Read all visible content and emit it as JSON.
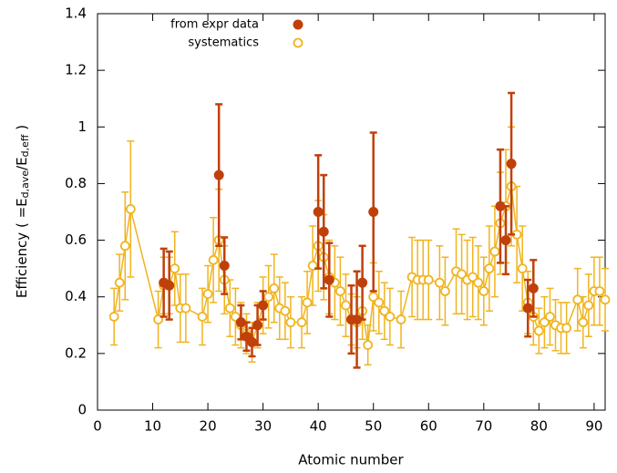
{
  "chart_data": {
    "type": "errorbar-scatter",
    "x_label": "Atomic number",
    "y_label": [
      "Efficiency  ( =E",
      "d,ave",
      "/E",
      "d,eff",
      " )"
    ],
    "xlim": [
      0,
      92
    ],
    "xticks": [
      0,
      10,
      20,
      30,
      40,
      50,
      60,
      70,
      80,
      90
    ],
    "ylim": [
      0,
      1.4
    ],
    "yticks": [
      0,
      0.2,
      0.4,
      0.6,
      0.8,
      1,
      1.2,
      1.4
    ],
    "series": [
      {
        "name": "from expr data",
        "color": "#c0400a",
        "marker": "filled",
        "connect": false,
        "x": [
          12,
          13,
          22,
          23,
          26,
          27,
          28,
          29,
          30,
          40,
          41,
          42,
          46,
          47,
          48,
          50,
          73,
          74,
          75,
          78,
          79
        ],
        "values": [
          0.45,
          0.44,
          0.83,
          0.51,
          0.31,
          0.26,
          0.24,
          0.3,
          0.37,
          0.7,
          0.63,
          0.46,
          0.32,
          0.32,
          0.45,
          0.7,
          0.72,
          0.6,
          0.87,
          0.36,
          0.43
        ],
        "errors": [
          0.12,
          0.12,
          0.25,
          0.1,
          0.06,
          0.05,
          0.05,
          0.07,
          0.05,
          0.2,
          0.2,
          0.13,
          0.12,
          0.17,
          0.13,
          0.28,
          0.2,
          0.12,
          0.25,
          0.1,
          0.1
        ]
      },
      {
        "name": "systematics",
        "color": "#f0b420",
        "marker": "open",
        "connect": true,
        "x": [
          3,
          4,
          5,
          6,
          11,
          12,
          13,
          14,
          15,
          16,
          19,
          20,
          21,
          22,
          23,
          24,
          25,
          26,
          27,
          28,
          29,
          30,
          31,
          32,
          33,
          34,
          35,
          37,
          38,
          39,
          40,
          41,
          42,
          43,
          44,
          45,
          46,
          47,
          48,
          49,
          50,
          51,
          52,
          53,
          55,
          57,
          58,
          59,
          60,
          62,
          63,
          65,
          66,
          67,
          68,
          69,
          70,
          71,
          72,
          73,
          74,
          75,
          76,
          77,
          78,
          79,
          80,
          81,
          82,
          83,
          84,
          85,
          87,
          88,
          89,
          90,
          91,
          92
        ],
        "values": [
          0.33,
          0.45,
          0.58,
          0.71,
          0.32,
          0.44,
          0.44,
          0.5,
          0.36,
          0.36,
          0.33,
          0.41,
          0.53,
          0.6,
          0.46,
          0.36,
          0.33,
          0.3,
          0.27,
          0.24,
          0.3,
          0.37,
          0.4,
          0.43,
          0.36,
          0.35,
          0.31,
          0.31,
          0.38,
          0.51,
          0.58,
          0.54,
          0.47,
          0.45,
          0.42,
          0.37,
          0.32,
          0.31,
          0.35,
          0.23,
          0.4,
          0.38,
          0.35,
          0.33,
          0.32,
          0.47,
          0.46,
          0.46,
          0.46,
          0.45,
          0.42,
          0.49,
          0.48,
          0.46,
          0.47,
          0.45,
          0.42,
          0.5,
          0.56,
          0.66,
          0.72,
          0.79,
          0.62,
          0.5,
          0.38,
          0.33,
          0.28,
          0.31,
          0.33,
          0.3,
          0.29,
          0.29,
          0.39,
          0.31,
          0.37,
          0.42,
          0.42,
          0.39
        ],
        "errors": [
          0.1,
          0.1,
          0.19,
          0.24,
          0.1,
          0.1,
          0.1,
          0.13,
          0.12,
          0.12,
          0.1,
          0.1,
          0.15,
          0.18,
          0.12,
          0.1,
          0.1,
          0.08,
          0.07,
          0.07,
          0.08,
          0.1,
          0.11,
          0.12,
          0.11,
          0.1,
          0.09,
          0.09,
          0.11,
          0.14,
          0.16,
          0.15,
          0.13,
          0.13,
          0.12,
          0.11,
          0.09,
          0.09,
          0.1,
          0.07,
          0.12,
          0.11,
          0.1,
          0.1,
          0.1,
          0.14,
          0.14,
          0.14,
          0.14,
          0.13,
          0.12,
          0.15,
          0.14,
          0.14,
          0.14,
          0.13,
          0.12,
          0.15,
          0.16,
          0.18,
          0.2,
          0.21,
          0.17,
          0.15,
          0.11,
          0.1,
          0.08,
          0.09,
          0.1,
          0.09,
          0.09,
          0.09,
          0.11,
          0.09,
          0.11,
          0.12,
          0.12,
          0.11
        ]
      }
    ]
  }
}
